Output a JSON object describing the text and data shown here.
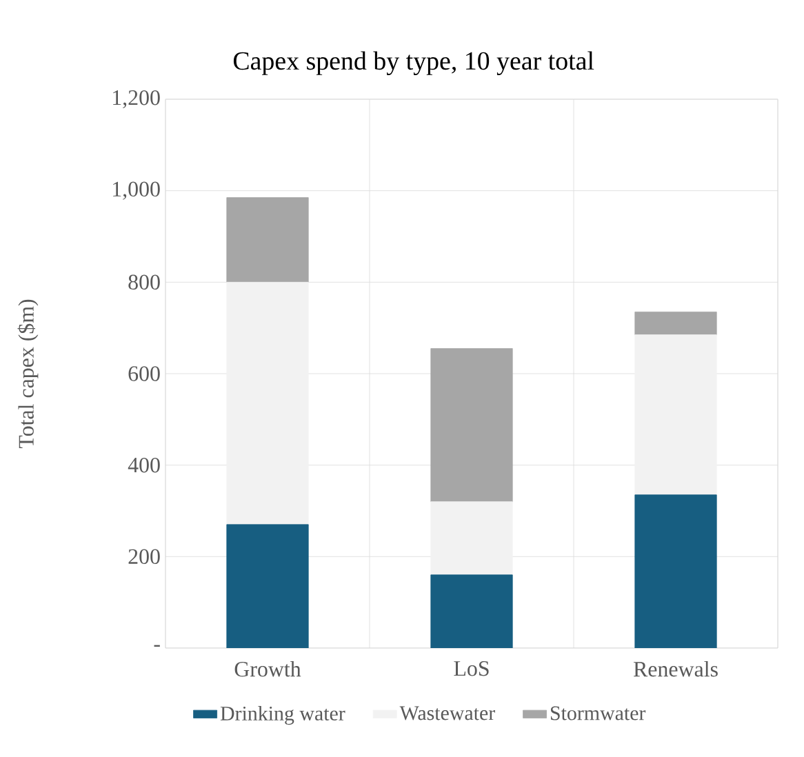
{
  "chart_data": {
    "type": "bar",
    "title": "Capex spend by type, 10 year total",
    "ylabel": "Total capex ($m)",
    "categories": [
      "Growth",
      "LoS",
      "Renewals"
    ],
    "stacked": true,
    "series": [
      {
        "name": "Drinking water",
        "color": "#175e81",
        "values": [
          270,
          160,
          335
        ]
      },
      {
        "name": "Wastewater",
        "color": "#f2f2f2",
        "values": [
          530,
          160,
          350
        ]
      },
      {
        "name": "Stormwater",
        "color": "#a6a6a6",
        "values": [
          185,
          335,
          50
        ]
      }
    ],
    "ylim": [
      0,
      1200
    ],
    "yticks": [
      {
        "value": 0,
        "label": "-"
      },
      {
        "value": 200,
        "label": "200"
      },
      {
        "value": 400,
        "label": "400"
      },
      {
        "value": 600,
        "label": "600"
      },
      {
        "value": 800,
        "label": "800"
      },
      {
        "value": 1000,
        "label": "1,000"
      },
      {
        "value": 1200,
        "label": "1,200"
      }
    ],
    "grid": true,
    "legend": "bottom"
  }
}
